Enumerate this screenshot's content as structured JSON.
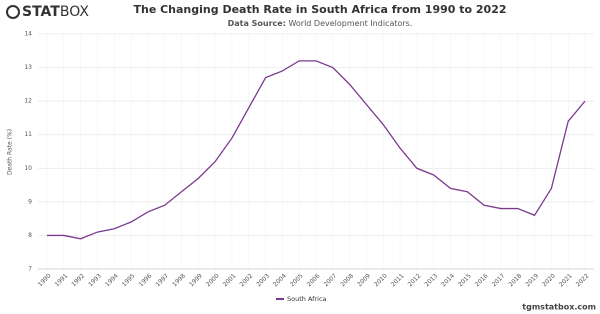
{
  "logo": {
    "bold": "STAT",
    "light": "BOX"
  },
  "footer": "tgmstatbox.com",
  "chart_data": {
    "type": "line",
    "title": "The Changing Death Rate in South Africa from 1990 to 2022",
    "subtitle_label": "Data Source:",
    "subtitle": "World Development Indicators.",
    "y_label": "Death Rate (%)",
    "categories": [
      "1990",
      "1991",
      "1992",
      "1993",
      "1994",
      "1995",
      "1996",
      "1997",
      "1998",
      "1999",
      "2000",
      "2001",
      "2002",
      "2003",
      "2004",
      "2005",
      "2006",
      "2007",
      "2008",
      "2009",
      "2010",
      "2011",
      "2012",
      "2013",
      "2014",
      "2015",
      "2016",
      "2017",
      "2018",
      "2019",
      "2020",
      "2021",
      "2022"
    ],
    "series": [
      {
        "name": "South Africa",
        "color": "#7b3a8e",
        "values": [
          8.0,
          8.0,
          7.9,
          8.1,
          8.2,
          8.4,
          8.7,
          8.9,
          9.3,
          9.7,
          10.2,
          10.9,
          11.8,
          12.7,
          12.9,
          13.2,
          13.2,
          13.0,
          12.5,
          11.9,
          11.3,
          10.6,
          10.0,
          9.8,
          9.4,
          9.3,
          8.9,
          8.8,
          8.8,
          8.6,
          9.4,
          11.4,
          12.0
        ]
      }
    ],
    "ylim": [
      7,
      14
    ],
    "yticks": [
      7,
      8,
      9,
      10,
      11,
      12,
      13,
      14
    ],
    "grid": true,
    "legend": "bottom"
  }
}
